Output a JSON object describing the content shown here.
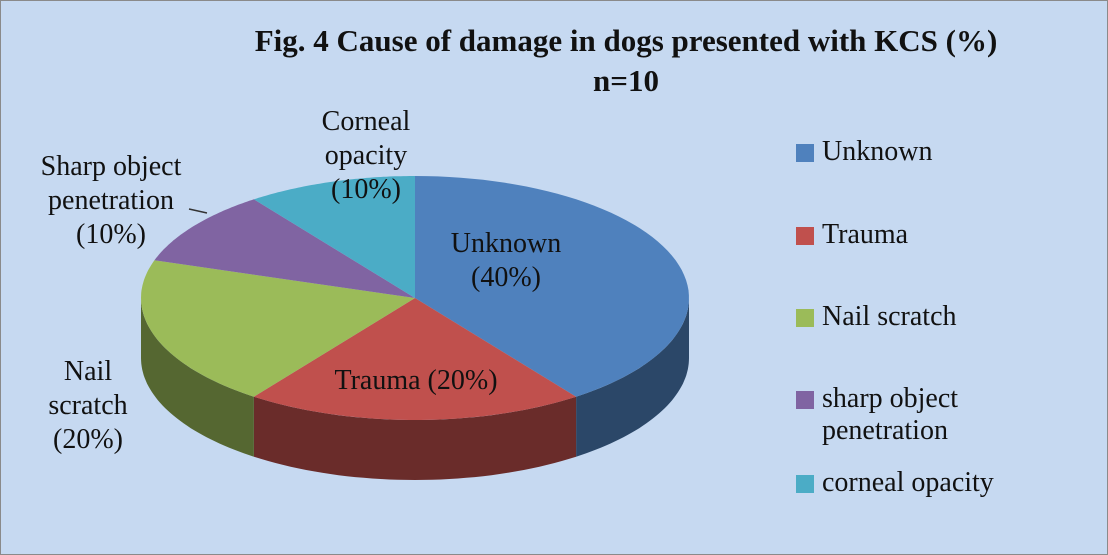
{
  "chart_data": {
    "type": "pie",
    "title": "Fig. 4 Cause of damage in dogs presented with KCS (%) n=10",
    "categories": [
      "Unknown",
      "Trauma",
      "Nail scratch",
      "sharp object penetration",
      "corneal opacity"
    ],
    "values": [
      40,
      20,
      20,
      10,
      10
    ],
    "value_labels": [
      "Unknown (40%)",
      "Trauma (20%)",
      "Nail scratch (20%)",
      "Sharp object penetration (10%)",
      "Corneal opacity (10%)"
    ],
    "colors": [
      "#4f81bd",
      "#c0504d",
      "#9bbb59",
      "#8064a2",
      "#4bacc6"
    ],
    "legend": "right"
  }
}
